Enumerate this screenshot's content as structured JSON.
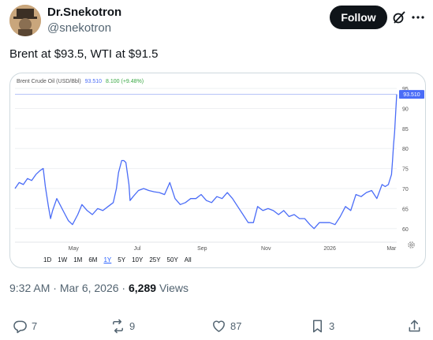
{
  "author": {
    "name": "Dr.Snekotron",
    "handle": "@snekotron",
    "follow_label": "Follow"
  },
  "tweet": {
    "text": "Brent at $93.5, WTI at $91.5",
    "time": "9:32 AM",
    "date": "Mar 6, 2026",
    "views_count": "6,289",
    "views_label": "Views"
  },
  "actions": {
    "replies": "7",
    "reposts": "9",
    "likes": "87",
    "bookmarks": "3"
  },
  "chart_header": {
    "title": "Brent Crude Oil (USD/Bbl)",
    "price": "93.510",
    "change": "8.100 (+9.48%)"
  },
  "range_buttons": [
    "1D",
    "1W",
    "1M",
    "6M",
    "1Y",
    "5Y",
    "10Y",
    "25Y",
    "50Y",
    "All"
  ],
  "active_range": "1Y",
  "colors": {
    "line": "#4a6cf7",
    "up": "#3aa845",
    "follow_bg": "#0f1419"
  },
  "chart_data": {
    "type": "line",
    "title": "Brent Crude Oil (USD/Bbl)",
    "x_ticks": [
      "May",
      "Jul",
      "Sep",
      "Nov",
      "2026",
      "Mar"
    ],
    "y_ticks": [
      60,
      65,
      70,
      75,
      80,
      85,
      90,
      95
    ],
    "ylim": [
      57,
      96
    ],
    "last_value_label": "93.510",
    "reference_line": 93.51,
    "series": [
      {
        "x": [
          "2025-03-06",
          "2025-03-10",
          "2025-03-14",
          "2025-03-18",
          "2025-03-22",
          "2025-03-26",
          "2025-03-30",
          "2025-04-02",
          "2025-04-04",
          "2025-04-07",
          "2025-04-09",
          "2025-04-11",
          "2025-04-15",
          "2025-04-18",
          "2025-04-22",
          "2025-04-26",
          "2025-04-30",
          "2025-05-05",
          "2025-05-09",
          "2025-05-14",
          "2025-05-19",
          "2025-05-24",
          "2025-05-29",
          "2025-06-03",
          "2025-06-08",
          "2025-06-11",
          "2025-06-13",
          "2025-06-16",
          "2025-06-18",
          "2025-06-20",
          "2025-06-23",
          "2025-06-24",
          "2025-06-27",
          "2025-07-02",
          "2025-07-07",
          "2025-07-12",
          "2025-07-17",
          "2025-07-22",
          "2025-07-27",
          "2025-08-01",
          "2025-08-06",
          "2025-08-11",
          "2025-08-16",
          "2025-08-21",
          "2025-08-26",
          "2025-08-31",
          "2025-09-05",
          "2025-09-10",
          "2025-09-15",
          "2025-09-20",
          "2025-09-25",
          "2025-09-30",
          "2025-10-05",
          "2025-10-10",
          "2025-10-15",
          "2025-10-20",
          "2025-10-24",
          "2025-10-29",
          "2025-11-03",
          "2025-11-08",
          "2025-11-13",
          "2025-11-18",
          "2025-11-23",
          "2025-11-28",
          "2025-12-03",
          "2025-12-08",
          "2025-12-13",
          "2025-12-17",
          "2025-12-22",
          "2025-12-27",
          "2026-01-01",
          "2026-01-06",
          "2026-01-11",
          "2026-01-16",
          "2026-01-21",
          "2026-01-26",
          "2026-01-31",
          "2026-02-05",
          "2026-02-10",
          "2026-02-15",
          "2026-02-20",
          "2026-02-23",
          "2026-02-26",
          "2026-03-01",
          "2026-03-02",
          "2026-03-03",
          "2026-03-04",
          "2026-03-05",
          "2026-03-06"
        ],
        "values": [
          70,
          71.5,
          71,
          72.5,
          72,
          73.5,
          74.5,
          75,
          70.5,
          65.5,
          62.5,
          64.5,
          67.5,
          66,
          64,
          62,
          61,
          63.5,
          66,
          64.5,
          63.5,
          65,
          64.5,
          65.5,
          66.5,
          70,
          74,
          77,
          77,
          76.5,
          71,
          67,
          68,
          69.5,
          70,
          69.5,
          69.2,
          69,
          68.5,
          71.5,
          67.5,
          66,
          66.5,
          67.5,
          67.5,
          68.5,
          67,
          66.5,
          68,
          67.5,
          69,
          67.5,
          65.5,
          63.5,
          61.5,
          61.5,
          65.5,
          64.5,
          65,
          64.5,
          63.5,
          64.5,
          63,
          63.5,
          62.5,
          62.5,
          61,
          60,
          61.5,
          61.5,
          61.5,
          61,
          63,
          65.5,
          64.5,
          68.5,
          68,
          69,
          69.5,
          67.5,
          71,
          70.5,
          71,
          73.5,
          77,
          81,
          84,
          89,
          93.51
        ]
      }
    ]
  }
}
